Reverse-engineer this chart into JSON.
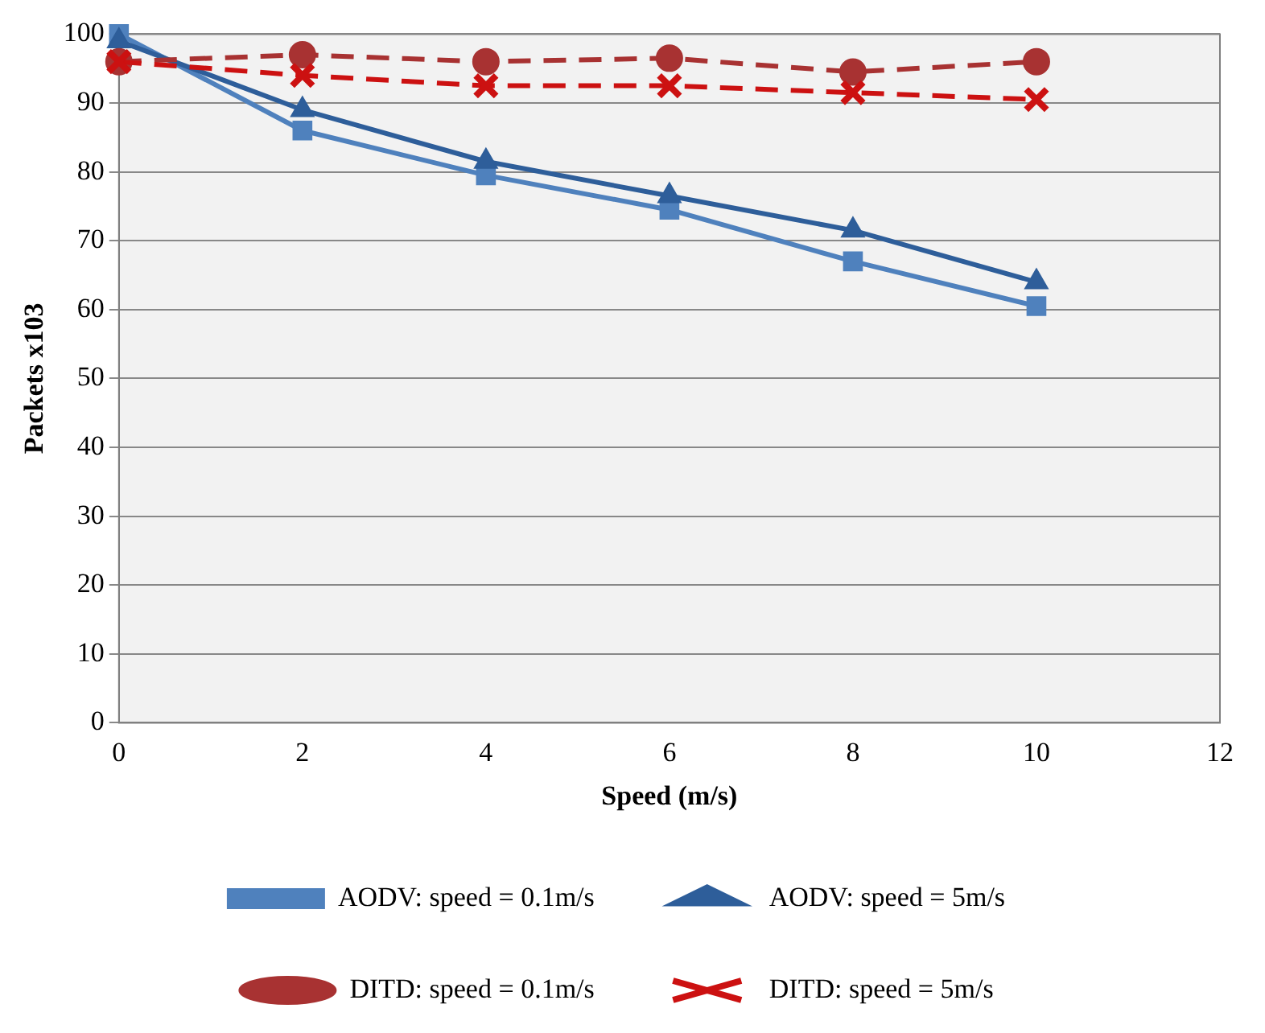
{
  "chart_data": {
    "type": "line",
    "xlabel": "Speed (m/s)",
    "ylabel": "Packets x103",
    "x": [
      0,
      2,
      4,
      6,
      8,
      10
    ],
    "xlim": [
      0,
      12
    ],
    "xticks": [
      0,
      2,
      4,
      6,
      8,
      10,
      12
    ],
    "ylim": [
      0,
      100
    ],
    "yticks": [
      0,
      10,
      20,
      30,
      40,
      50,
      60,
      70,
      80,
      90,
      100
    ],
    "grid": "y",
    "legend": "bottom",
    "series": [
      {
        "name": "AODV: speed = 0.1m/s",
        "color": "#4f81bd",
        "marker": "square",
        "line_style": "solid",
        "values": [
          100,
          86,
          79.5,
          74.5,
          67,
          60.5
        ]
      },
      {
        "name": "AODV: speed = 5m/s",
        "color": "#2e5e9a",
        "marker": "triangle",
        "line_style": "solid",
        "values": [
          99,
          89,
          81.5,
          76.5,
          71.5,
          64
        ]
      },
      {
        "name": "DITD: speed = 0.1m/s",
        "color": "#a83232",
        "marker": "circle",
        "line_style": "dashed",
        "values": [
          96,
          97,
          96,
          96.5,
          94.5,
          96
        ]
      },
      {
        "name": "DITD: speed = 5m/s",
        "color": "#cc1111",
        "marker": "cross",
        "line_style": "dashed",
        "values": [
          96,
          94,
          92.5,
          92.5,
          91.5,
          90.5
        ]
      }
    ]
  }
}
